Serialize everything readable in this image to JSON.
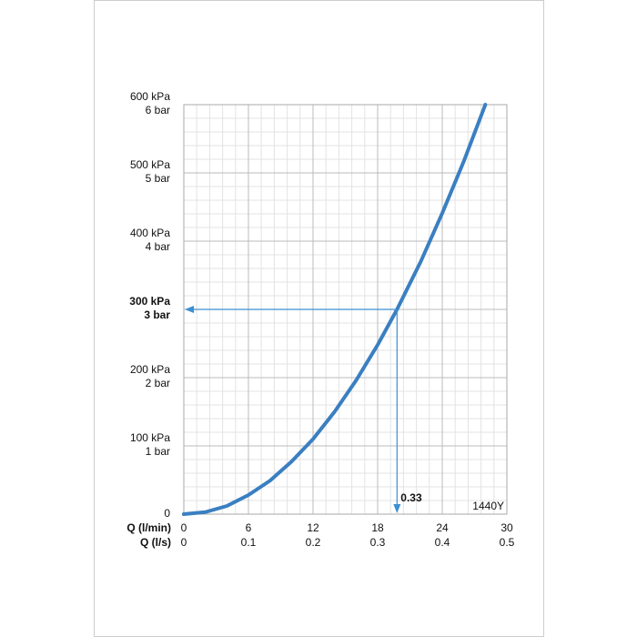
{
  "chart_data": {
    "type": "line",
    "x": [
      0,
      2,
      4,
      6,
      8,
      10,
      12,
      14,
      16,
      18,
      19.8,
      22,
      24,
      26,
      28
    ],
    "series": [
      {
        "color": "#3a7fc1",
        "values": [
          0,
          3,
          12,
          28,
          49,
          77,
          110,
          150,
          196,
          248,
          300,
          370,
          441,
          517,
          600
        ]
      }
    ],
    "xlim": [
      0,
      30
    ],
    "xticks": [
      0,
      6,
      12,
      18,
      24,
      30
    ],
    "x2lim": [
      0,
      0.5
    ],
    "x2ticks": [
      0,
      0.1,
      0.2,
      0.3,
      0.4,
      0.5
    ],
    "xlabel": "Q (l/min)",
    "x2label": "Q (l/s)",
    "ylim": [
      0,
      600
    ],
    "yticks": [
      0,
      {
        "value": 100,
        "label": "100 kPa"
      },
      {
        "value": 200,
        "label": "200 kPa"
      },
      {
        "value": 300,
        "label": "300 kPa"
      },
      {
        "value": 400,
        "label": "400 kPa"
      },
      {
        "value": 500,
        "label": "500 kPa"
      },
      {
        "value": 600,
        "label": "600 kPa"
      }
    ],
    "y2lim": [
      0,
      6
    ],
    "y2ticks": [
      {
        "value": 1,
        "label": "1 bar"
      },
      {
        "value": 2,
        "label": "2 bar"
      },
      {
        "value": 3,
        "label": "3 bar"
      },
      {
        "value": 4,
        "label": "4 bar"
      },
      {
        "value": 5,
        "label": "5 bar"
      },
      {
        "value": 6,
        "label": "6 bar"
      }
    ],
    "highlight": {
      "x": 19.8,
      "y": 300,
      "label": "0.33",
      "color": "#3c8fd0"
    },
    "code": "1440Y",
    "grid": true
  }
}
